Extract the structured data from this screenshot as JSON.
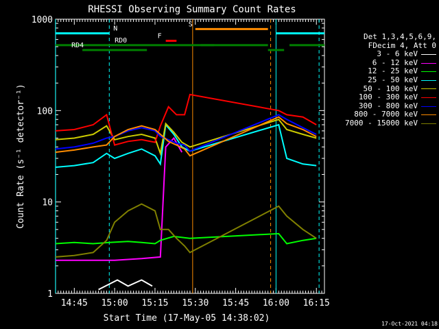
{
  "chart_data": {
    "type": "line",
    "title": "RHESSI Observing Summary Count Rates",
    "xlabel": "Start Time (17-May-05 14:38:02)",
    "ylabel": "Count Rate (s⁻¹ detector⁻¹)",
    "xlim": [
      "14:38:02",
      "16:18:00"
    ],
    "ylim": [
      1,
      1000
    ],
    "y_scale": "log",
    "x_ticks": [
      "14:45",
      "15:00",
      "15:15",
      "15:30",
      "15:45",
      "16:00",
      "16:15"
    ],
    "y_ticks": [
      "1",
      "10",
      "100",
      "1000"
    ],
    "legend_position": "right",
    "legend_header": [
      "Det 1,3,4,5,6,9,",
      "FDecim 4, Att 0"
    ],
    "series": [
      {
        "name": "3 - 6 keV",
        "color": "#ffffff",
        "points": [
          [
            "14:54",
            1.1
          ],
          [
            "15:01",
            1.4
          ],
          [
            "15:05",
            1.2
          ],
          [
            "15:10",
            1.4
          ],
          [
            "15:14",
            1.2
          ]
        ]
      },
      {
        "name": "6 - 12 keV",
        "color": "#ff00ff",
        "points": [
          [
            "14:38",
            2.3
          ],
          [
            "14:50",
            2.3
          ],
          [
            "15:00",
            2.3
          ],
          [
            "15:10",
            2.4
          ],
          [
            "15:17",
            2.5
          ],
          [
            "15:19",
            40
          ],
          [
            "15:22",
            50
          ],
          [
            "15:25",
            35
          ]
        ]
      },
      {
        "name": "12 - 25 keV",
        "color": "#00ff00",
        "points": [
          [
            "14:38",
            3.5
          ],
          [
            "14:45",
            3.6
          ],
          [
            "14:52",
            3.5
          ],
          [
            "14:58",
            3.6
          ],
          [
            "15:05",
            3.7
          ],
          [
            "15:10",
            3.6
          ],
          [
            "15:15",
            3.5
          ],
          [
            "15:17",
            3.8
          ],
          [
            "15:22",
            4.2
          ],
          [
            "15:28",
            4.0
          ],
          [
            "16:01",
            4.5
          ],
          [
            "16:04",
            3.5
          ],
          [
            "16:10",
            3.8
          ],
          [
            "16:15",
            4.0
          ]
        ]
      },
      {
        "name": "25 - 50 keV",
        "color": "#00ffff",
        "points": [
          [
            "14:38",
            24
          ],
          [
            "14:45",
            25
          ],
          [
            "14:52",
            27
          ],
          [
            "14:57",
            34
          ],
          [
            "15:00",
            30
          ],
          [
            "15:05",
            34
          ],
          [
            "15:10",
            38
          ],
          [
            "15:15",
            32
          ],
          [
            "15:17",
            26
          ],
          [
            "15:19",
            70
          ],
          [
            "15:22",
            55
          ],
          [
            "15:25",
            40
          ],
          [
            "15:28",
            36
          ],
          [
            "16:01",
            70
          ],
          [
            "16:04",
            30
          ],
          [
            "16:10",
            26
          ],
          [
            "16:15",
            25
          ]
        ]
      },
      {
        "name": "50 - 100 keV",
        "color": "#cccc00",
        "points": [
          [
            "14:38",
            48
          ],
          [
            "14:45",
            50
          ],
          [
            "14:52",
            55
          ],
          [
            "14:57",
            68
          ],
          [
            "15:00",
            48
          ],
          [
            "15:05",
            52
          ],
          [
            "15:10",
            55
          ],
          [
            "15:15",
            50
          ],
          [
            "15:17",
            34
          ],
          [
            "15:19",
            72
          ],
          [
            "15:22",
            58
          ],
          [
            "15:25",
            45
          ],
          [
            "15:28",
            40
          ],
          [
            "16:01",
            80
          ],
          [
            "16:04",
            62
          ],
          [
            "16:10",
            55
          ],
          [
            "16:15",
            50
          ]
        ]
      },
      {
        "name": "100 - 300 keV",
        "color": "#ff0000",
        "points": [
          [
            "14:38",
            60
          ],
          [
            "14:45",
            62
          ],
          [
            "14:52",
            70
          ],
          [
            "14:57",
            90
          ],
          [
            "15:00",
            42
          ],
          [
            "15:05",
            46
          ],
          [
            "15:10",
            48
          ],
          [
            "15:15",
            45
          ],
          [
            "15:17",
            68
          ],
          [
            "15:20",
            110
          ],
          [
            "15:23",
            90
          ],
          [
            "15:26",
            90
          ],
          [
            "15:28",
            150
          ],
          [
            "16:01",
            100
          ],
          [
            "16:04",
            90
          ],
          [
            "16:10",
            85
          ],
          [
            "16:15",
            70
          ]
        ]
      },
      {
        "name": "300 - 800 keV",
        "color": "#0000ff",
        "points": [
          [
            "14:38",
            38
          ],
          [
            "14:45",
            40
          ],
          [
            "14:52",
            44
          ],
          [
            "14:57",
            50
          ],
          [
            "15:00",
            52
          ],
          [
            "15:05",
            60
          ],
          [
            "15:10",
            65
          ],
          [
            "15:15",
            60
          ],
          [
            "15:17",
            52
          ],
          [
            "15:20",
            48
          ],
          [
            "15:23",
            44
          ],
          [
            "15:26",
            42
          ],
          [
            "15:28",
            36
          ],
          [
            "16:01",
            90
          ],
          [
            "16:04",
            80
          ],
          [
            "16:10",
            65
          ],
          [
            "16:15",
            55
          ]
        ]
      },
      {
        "name": "800 - 7000 keV",
        "color": "#ff8c00",
        "points": [
          [
            "14:38",
            35
          ],
          [
            "14:45",
            37
          ],
          [
            "14:52",
            40
          ],
          [
            "14:57",
            42
          ],
          [
            "15:00",
            52
          ],
          [
            "15:05",
            62
          ],
          [
            "15:10",
            68
          ],
          [
            "15:15",
            62
          ],
          [
            "15:17",
            55
          ],
          [
            "15:20",
            46
          ],
          [
            "15:23",
            42
          ],
          [
            "15:26",
            38
          ],
          [
            "15:28",
            32
          ],
          [
            "16:01",
            85
          ],
          [
            "16:04",
            72
          ],
          [
            "16:10",
            62
          ],
          [
            "16:15",
            52
          ]
        ]
      },
      {
        "name": "7000 - 15000 keV",
        "color": "#808000",
        "points": [
          [
            "14:38",
            2.5
          ],
          [
            "14:45",
            2.6
          ],
          [
            "14:52",
            2.8
          ],
          [
            "14:57",
            3.8
          ],
          [
            "15:00",
            6
          ],
          [
            "15:05",
            8
          ],
          [
            "15:10",
            9.5
          ],
          [
            "15:15",
            8
          ],
          [
            "15:17",
            5
          ],
          [
            "15:20",
            5
          ],
          [
            "15:23",
            4
          ],
          [
            "15:26",
            3.3
          ],
          [
            "15:28",
            2.8
          ],
          [
            "16:01",
            9
          ],
          [
            "16:04",
            7
          ],
          [
            "16:10",
            5
          ],
          [
            "16:15",
            4
          ]
        ]
      }
    ],
    "status_bars": [
      {
        "label": "N",
        "color": "#00ffff",
        "level": 700,
        "segments": [
          [
            "14:38",
            "14:58"
          ],
          [
            "16:00",
            "16:18"
          ]
        ]
      },
      {
        "label": "S",
        "color": "#ff8c00",
        "level": 780,
        "segments": [
          [
            "15:30",
            "15:57"
          ]
        ]
      },
      {
        "label": "F",
        "color": "#ff0000",
        "level": 580,
        "segments": [
          [
            "15:19",
            "15:23"
          ]
        ]
      },
      {
        "label": "RD0",
        "color": "#008000",
        "level": 520,
        "segments": [
          [
            "14:38",
            "15:37"
          ]
        ]
      },
      {
        "label": "RD4",
        "color": "#008000",
        "level": 460,
        "segments": [
          [
            "14:48",
            "15:12"
          ]
        ]
      },
      {
        "label": "",
        "color": "#008000",
        "level": 520,
        "segments": [
          [
            "15:32",
            "15:57"
          ],
          [
            "16:05",
            "16:18"
          ]
        ]
      },
      {
        "label": "",
        "color": "#008000",
        "level": 460,
        "segments": [
          [
            "15:57",
            "16:03"
          ]
        ]
      }
    ],
    "markers": [
      {
        "time": "14:38",
        "color": "#00ffff",
        "style": "solid"
      },
      {
        "time": "14:58",
        "color": "#00ffff",
        "style": "dashed"
      },
      {
        "time": "15:29",
        "color": "#ff8c00",
        "style": "solid"
      },
      {
        "time": "15:58",
        "color": "#ff8c00",
        "style": "dashed"
      },
      {
        "time": "16:00",
        "color": "#00ffff",
        "style": "solid"
      },
      {
        "time": "16:16",
        "color": "#00ffff",
        "style": "dashed"
      }
    ]
  },
  "timestamp": "17-Oct-2021 04:18"
}
